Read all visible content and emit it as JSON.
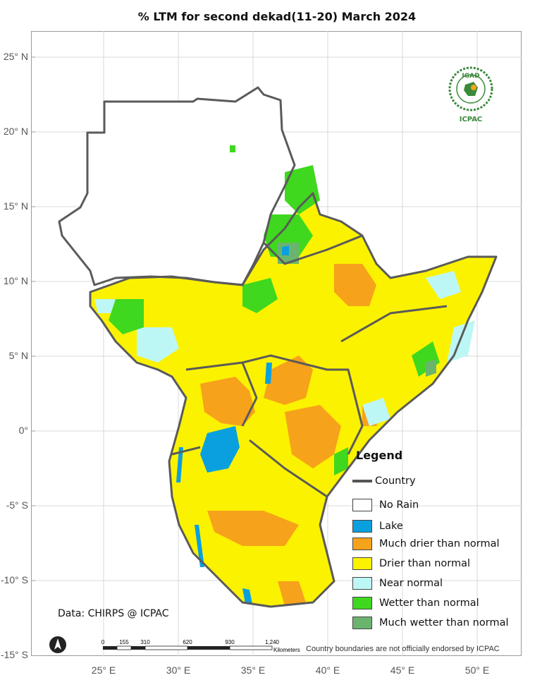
{
  "title": "% LTM  for  second dekad(11-20) March 2024",
  "axes": {
    "lat_labels": [
      "25° N",
      "20° N",
      "15° N",
      "10° N",
      "5° N",
      "0°",
      "-5° S",
      "-10° S",
      "-15° S"
    ],
    "lon_labels": [
      "25° E",
      "30° E",
      "35° E",
      "40° E",
      "45° E",
      "50° E"
    ]
  },
  "legend": {
    "title": "Legend",
    "country_label": "Country",
    "items": [
      {
        "label": "No Rain",
        "color": "#ffffff"
      },
      {
        "label": "Lake",
        "color": "#0aa0e0"
      },
      {
        "label": "Much drier than normal",
        "color": "#f7a21b"
      },
      {
        "label": "Drier than normal",
        "color": "#fbf200"
      },
      {
        "label": "Near normal",
        "color": "#bdf7f5"
      },
      {
        "label": "Wetter than normal",
        "color": "#3fd81e"
      },
      {
        "label": "Much wetter than normal",
        "color": "#6bb46e"
      }
    ]
  },
  "source": "Data: CHIRPS @ ICPAC",
  "disclaimer": "Country boundaries are not officially endorsed by ICPAC",
  "scale": {
    "ticks": [
      "0",
      "155",
      "310",
      "620",
      "930",
      "1,240"
    ],
    "unit": "Kilometers"
  },
  "logo": {
    "top_text": "IGAD",
    "bottom_text": "ICPAC"
  },
  "colors": {
    "border": "#5a5a5a",
    "frame": "#9a9a9a",
    "grid": "#d8d8d8"
  }
}
